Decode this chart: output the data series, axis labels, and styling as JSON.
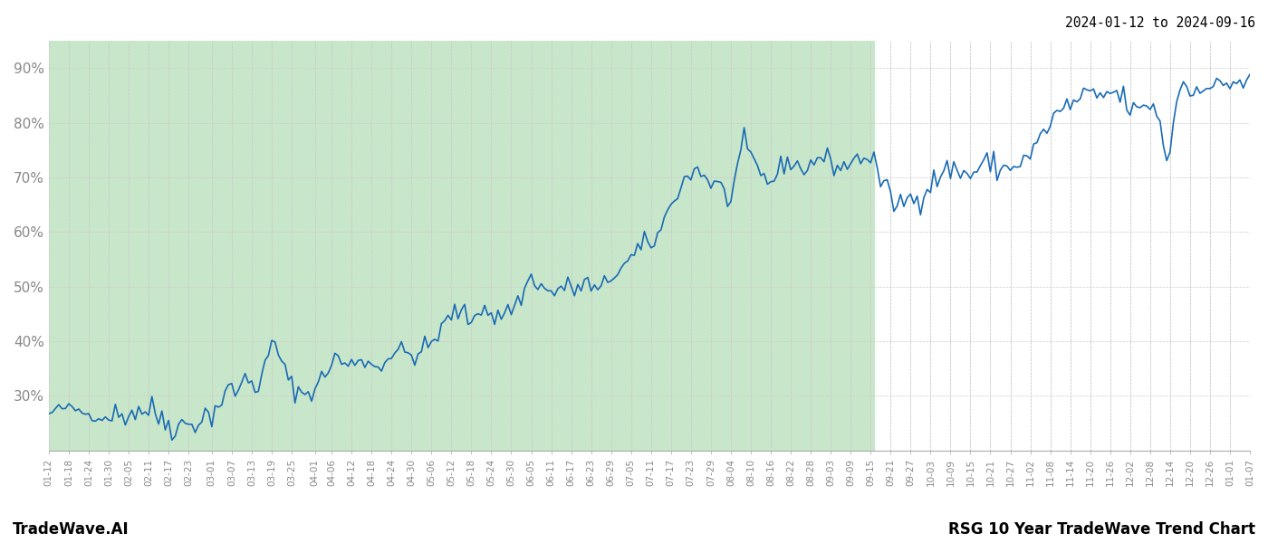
{
  "title_top_right": "2024-01-12 to 2024-09-16",
  "footer_left": "TradeWave.AI",
  "footer_right": "RSG 10 Year TradeWave Trend Chart",
  "y_min": 20,
  "y_max": 95,
  "y_ticks": [
    30,
    40,
    50,
    60,
    70,
    80,
    90
  ],
  "shaded_region_start": "2024-01-12",
  "shaded_region_end": "2024-09-16",
  "shaded_color": "#c8e6c9",
  "line_color": "#1a6bb5",
  "line_width": 1.2,
  "background_color": "#ffffff",
  "grid_color": "#cccccc",
  "grid_style": "--",
  "tick_label_color": "#888888",
  "x_tick_labels": [
    "01-12",
    "01-18",
    "01-24",
    "01-30",
    "02-05",
    "02-11",
    "02-17",
    "02-23",
    "03-01",
    "03-07",
    "03-13",
    "03-19",
    "03-25",
    "04-01",
    "04-06",
    "04-12",
    "04-18",
    "04-24",
    "04-30",
    "05-06",
    "05-12",
    "05-18",
    "05-24",
    "05-30",
    "06-05",
    "06-11",
    "06-17",
    "06-23",
    "06-29",
    "07-05",
    "07-11",
    "07-17",
    "07-23",
    "07-29",
    "08-04",
    "08-10",
    "08-16",
    "08-22",
    "08-28",
    "09-03",
    "09-09",
    "09-15",
    "09-21",
    "09-27",
    "10-03",
    "10-09",
    "10-15",
    "10-21",
    "10-27",
    "11-02",
    "11-08",
    "11-14",
    "11-20",
    "11-26",
    "12-02",
    "12-08",
    "12-14",
    "12-20",
    "12-26",
    "01-01",
    "01-07"
  ],
  "x_tick_dates": [
    "2024-01-12",
    "2024-01-18",
    "2024-01-24",
    "2024-01-30",
    "2024-02-05",
    "2024-02-11",
    "2024-02-17",
    "2024-02-23",
    "2024-03-01",
    "2024-03-07",
    "2024-03-13",
    "2024-03-19",
    "2024-03-25",
    "2024-04-01",
    "2024-04-06",
    "2024-04-12",
    "2024-04-18",
    "2024-04-24",
    "2024-04-30",
    "2024-05-06",
    "2024-05-12",
    "2024-05-18",
    "2024-05-24",
    "2024-05-30",
    "2024-06-05",
    "2024-06-11",
    "2024-06-17",
    "2024-06-23",
    "2024-06-29",
    "2024-07-05",
    "2024-07-11",
    "2024-07-17",
    "2024-07-23",
    "2024-07-29",
    "2024-08-04",
    "2024-08-10",
    "2024-08-16",
    "2024-08-22",
    "2024-08-28",
    "2024-09-03",
    "2024-09-09",
    "2024-09-15",
    "2024-09-21",
    "2024-09-27",
    "2024-10-03",
    "2024-10-09",
    "2024-10-15",
    "2024-10-21",
    "2024-10-27",
    "2024-11-02",
    "2024-11-08",
    "2024-11-14",
    "2024-11-20",
    "2024-11-26",
    "2024-12-02",
    "2024-12-08",
    "2024-12-14",
    "2024-12-20",
    "2024-12-26",
    "2025-01-01",
    "2025-01-07"
  ],
  "key_points": {
    "2024-01-12": 26.5,
    "2024-01-20": 27.5,
    "2024-01-28": 26.0,
    "2024-02-05": 27.0,
    "2024-02-10": 27.5,
    "2024-02-15": 26.0,
    "2024-02-20": 24.5,
    "2024-02-25": 25.5,
    "2024-03-01": 27.0,
    "2024-03-05": 30.0,
    "2024-03-10": 32.0,
    "2024-03-13": 33.0,
    "2024-03-15": 32.0,
    "2024-03-20": 39.5,
    "2024-03-22": 36.0,
    "2024-03-25": 32.0,
    "2024-04-01": 31.5,
    "2024-04-05": 35.0,
    "2024-04-08": 37.0,
    "2024-04-10": 35.5,
    "2024-04-15": 37.0,
    "2024-04-18": 35.5,
    "2024-04-22": 36.5,
    "2024-04-25": 38.0,
    "2024-04-30": 37.5,
    "2024-05-05": 39.0,
    "2024-05-10": 43.0,
    "2024-05-14": 45.5,
    "2024-05-18": 44.0,
    "2024-05-22": 46.5,
    "2024-05-25": 44.0,
    "2024-05-28": 45.5,
    "2024-06-01": 47.0,
    "2024-06-05": 51.5,
    "2024-06-08": 50.0,
    "2024-06-12": 49.0,
    "2024-06-15": 50.0,
    "2024-06-18": 49.5,
    "2024-06-22": 50.5,
    "2024-06-25": 49.0,
    "2024-06-28": 51.0,
    "2024-07-01": 53.0,
    "2024-07-05": 55.0,
    "2024-07-08": 57.0,
    "2024-07-12": 58.5,
    "2024-07-15": 62.0,
    "2024-07-18": 66.5,
    "2024-07-22": 70.0,
    "2024-07-25": 71.5,
    "2024-07-28": 69.5,
    "2024-08-01": 68.0,
    "2024-08-04": 66.5,
    "2024-08-07": 74.5,
    "2024-08-10": 73.5,
    "2024-08-12": 71.5,
    "2024-08-15": 69.5,
    "2024-08-18": 70.5,
    "2024-08-20": 72.5,
    "2024-08-22": 73.0,
    "2024-08-25": 71.5,
    "2024-08-28": 72.5,
    "2024-09-01": 73.5,
    "2024-09-05": 72.0,
    "2024-09-10": 73.0,
    "2024-09-16": 72.5,
    "2024-09-20": 67.0,
    "2024-09-25": 65.5,
    "2024-09-27": 66.0,
    "2024-10-01": 67.5,
    "2024-10-05": 70.0,
    "2024-10-09": 71.5,
    "2024-10-12": 71.0,
    "2024-10-15": 70.5,
    "2024-10-18": 72.0,
    "2024-10-21": 72.5,
    "2024-10-24": 71.5,
    "2024-10-27": 72.0,
    "2024-11-01": 73.5,
    "2024-11-05": 77.0,
    "2024-11-08": 80.0,
    "2024-11-12": 82.5,
    "2024-11-15": 83.5,
    "2024-11-18": 85.0,
    "2024-11-22": 84.5,
    "2024-11-26": 85.5,
    "2024-12-01": 83.5,
    "2024-12-05": 82.0,
    "2024-12-08": 83.5,
    "2024-12-10": 82.0,
    "2024-12-14": 75.0,
    "2024-12-16": 84.5,
    "2024-12-20": 85.5,
    "2024-12-24": 87.5,
    "2024-12-26": 86.5,
    "2024-12-30": 87.0,
    "2025-01-03": 87.5,
    "2025-01-07": 87.0
  }
}
